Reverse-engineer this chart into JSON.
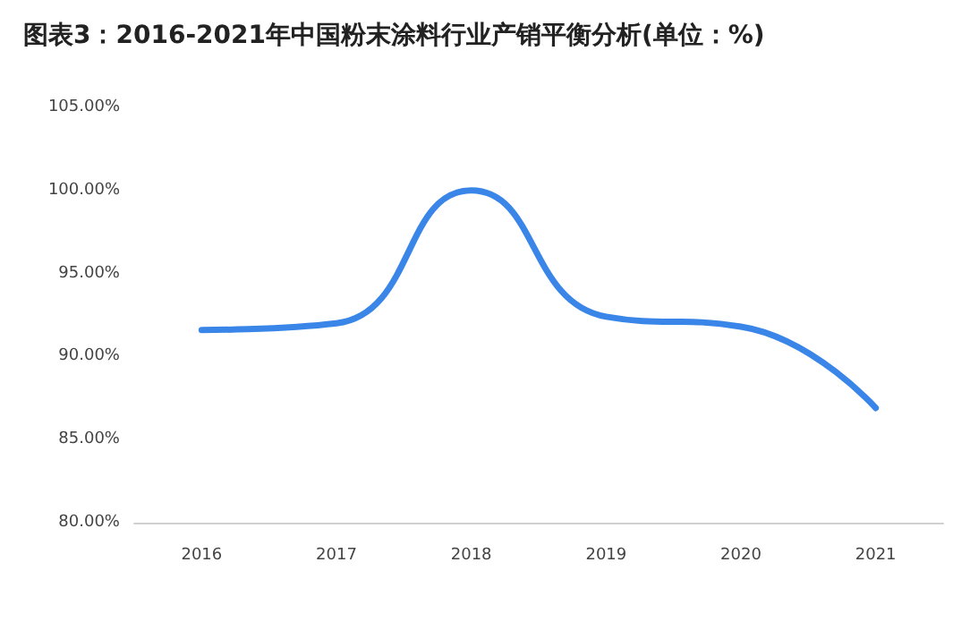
{
  "chart_data": {
    "type": "line",
    "title": "图表3：2016-2021年中国粉末涂料行业产销平衡分析(单位：%)",
    "categories": [
      "2016",
      "2017",
      "2018",
      "2019",
      "2020",
      "2021"
    ],
    "series": [
      {
        "color": "#3a86e8",
        "values": [
          91.6,
          92.0,
          100.0,
          92.4,
          91.8,
          86.9
        ]
      }
    ],
    "ylim": [
      80,
      105
    ],
    "yticks": [
      {
        "value": 80,
        "label": "80.00%"
      },
      {
        "value": 85,
        "label": "85.00%"
      },
      {
        "value": 90,
        "label": "90.00%"
      },
      {
        "value": 95,
        "label": "95.00%"
      },
      {
        "value": 100,
        "label": "100.00%"
      },
      {
        "value": 105,
        "label": "105.00%"
      }
    ],
    "marker": "none",
    "line_style": "solid"
  }
}
